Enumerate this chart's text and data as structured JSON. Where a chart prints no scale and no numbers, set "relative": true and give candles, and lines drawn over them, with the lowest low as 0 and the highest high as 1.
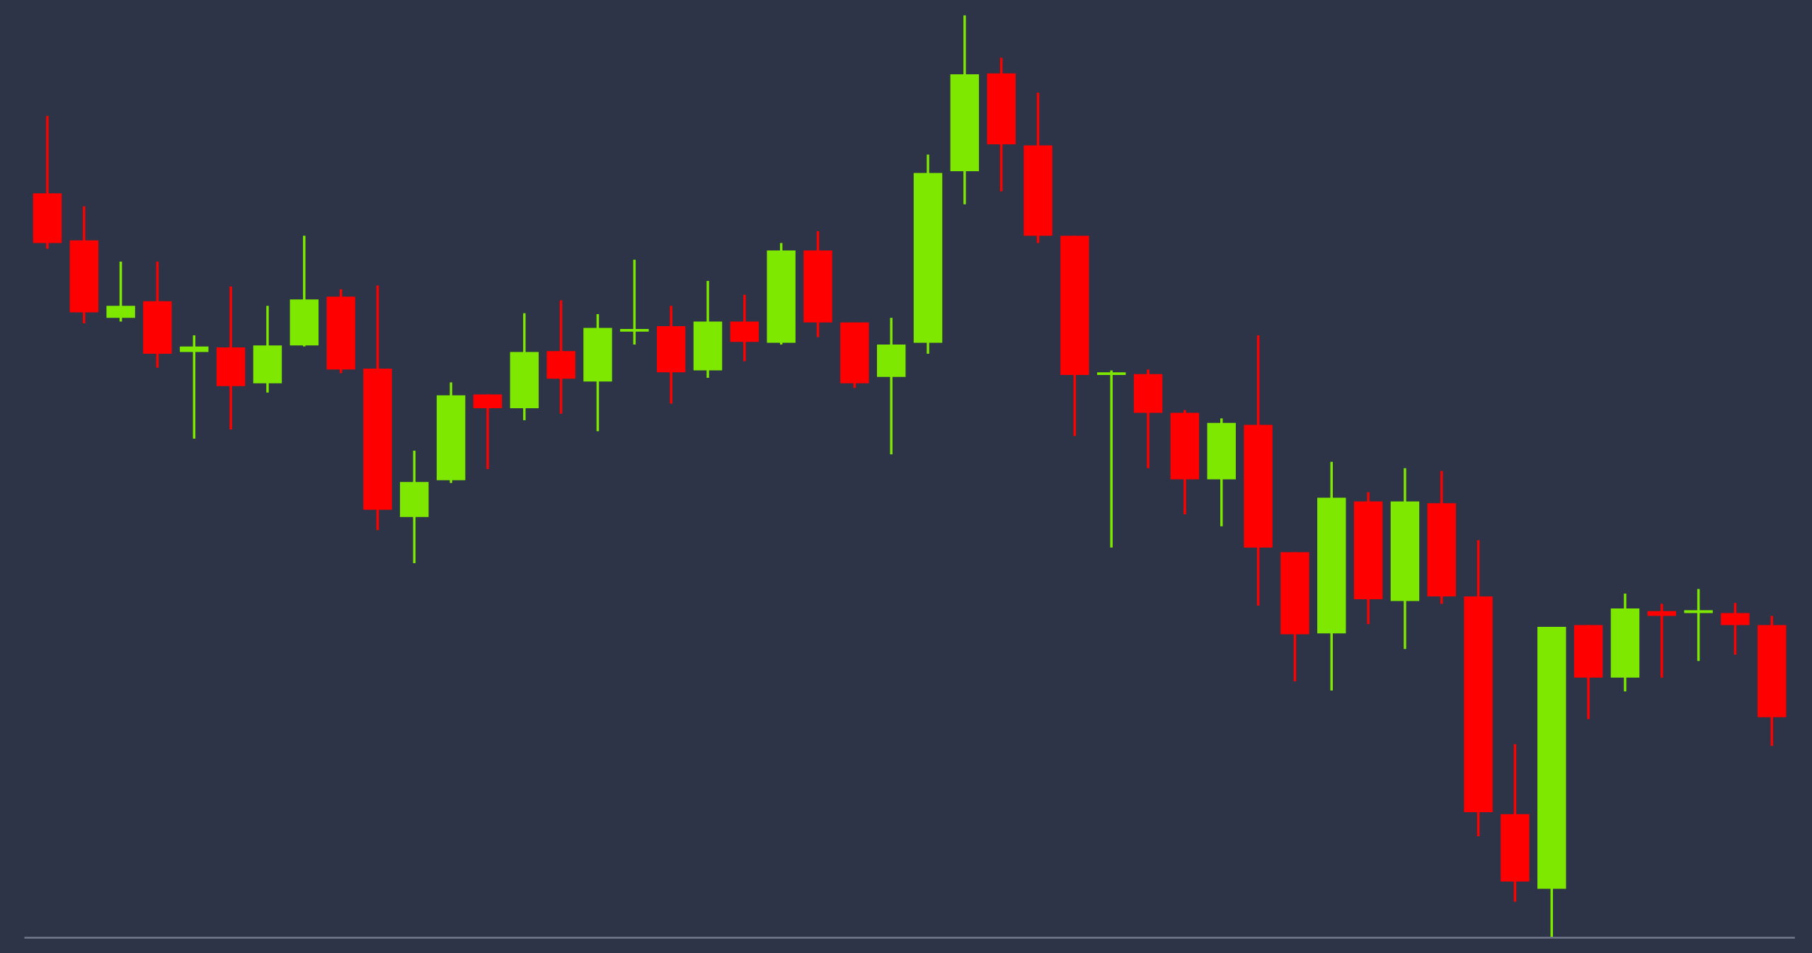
{
  "chart_data": {
    "type": "candlestick",
    "relative": true,
    "categories": [
      null,
      null,
      null,
      null,
      null,
      null,
      null,
      null,
      null,
      null,
      null,
      null,
      null,
      null,
      null,
      null,
      null,
      null,
      null,
      null,
      null,
      null,
      null,
      null,
      null,
      null,
      null,
      null,
      null,
      null,
      null,
      null,
      null,
      null,
      null,
      null,
      null,
      null,
      null,
      null,
      null,
      null,
      null,
      null,
      null,
      null,
      null,
      null
    ],
    "ohlc": [
      [
        0.807,
        0.891,
        0.747,
        0.753
      ],
      [
        0.756,
        0.793,
        0.666,
        0.678
      ],
      [
        0.672,
        0.733,
        0.668,
        0.685
      ],
      [
        0.69,
        0.733,
        0.618,
        0.633
      ],
      [
        0.635,
        0.653,
        0.541,
        0.641
      ],
      [
        0.64,
        0.706,
        0.551,
        0.598
      ],
      [
        0.601,
        0.685,
        0.591,
        0.642
      ],
      [
        0.642,
        0.761,
        0.641,
        0.692
      ],
      [
        0.695,
        0.703,
        0.612,
        0.616
      ],
      [
        0.617,
        0.707,
        0.442,
        0.464
      ],
      [
        0.456,
        0.528,
        0.406,
        0.494
      ],
      [
        0.496,
        0.602,
        0.493,
        0.588
      ],
      [
        0.589,
        0.589,
        0.508,
        0.574
      ],
      [
        0.574,
        0.677,
        0.561,
        0.635
      ],
      [
        0.636,
        0.691,
        0.568,
        0.606
      ],
      [
        0.603,
        0.676,
        0.549,
        0.661
      ],
      [
        0.657,
        0.735,
        0.643,
        0.66
      ],
      [
        0.663,
        0.685,
        0.579,
        0.613
      ],
      [
        0.615,
        0.712,
        0.607,
        0.668
      ],
      [
        0.668,
        0.697,
        0.625,
        0.646
      ],
      [
        0.645,
        0.753,
        0.643,
        0.745
      ],
      [
        0.745,
        0.766,
        0.651,
        0.667
      ],
      [
        0.667,
        0.667,
        0.596,
        0.601
      ],
      [
        0.608,
        0.672,
        0.524,
        0.643
      ],
      [
        0.645,
        0.849,
        0.633,
        0.829
      ],
      [
        0.831,
        1.0,
        0.795,
        0.936
      ],
      [
        0.937,
        0.954,
        0.809,
        0.86
      ],
      [
        0.859,
        0.916,
        0.753,
        0.761
      ],
      [
        0.761,
        0.761,
        0.544,
        0.61
      ],
      [
        0.61,
        0.615,
        0.423,
        0.612
      ],
      [
        0.611,
        0.616,
        0.509,
        0.569
      ],
      [
        0.569,
        0.572,
        0.459,
        0.497
      ],
      [
        0.497,
        0.563,
        0.446,
        0.558
      ],
      [
        0.556,
        0.653,
        0.36,
        0.423
      ],
      [
        0.418,
        0.418,
        0.278,
        0.329
      ],
      [
        0.33,
        0.516,
        0.268,
        0.477
      ],
      [
        0.473,
        0.483,
        0.34,
        0.367
      ],
      [
        0.365,
        0.509,
        0.313,
        0.473
      ],
      [
        0.471,
        0.506,
        0.362,
        0.37
      ],
      [
        0.37,
        0.431,
        0.11,
        0.136
      ],
      [
        0.134,
        0.21,
        0.039,
        0.061
      ],
      [
        0.053,
        0.337,
        0.0,
        0.337
      ],
      [
        0.339,
        0.339,
        0.237,
        0.282
      ],
      [
        0.282,
        0.373,
        0.267,
        0.357
      ],
      [
        0.354,
        0.362,
        0.282,
        0.349
      ],
      [
        0.352,
        0.378,
        0.3,
        0.354
      ],
      [
        0.352,
        0.363,
        0.307,
        0.339
      ],
      [
        0.339,
        0.349,
        0.208,
        0.239
      ]
    ],
    "colors": [
      "#ff0000",
      "#ff0000",
      "#7ee800",
      "#ff0000",
      "#7ee800",
      "#ff0000",
      "#7ee800",
      "#7ee800",
      "#ff0000",
      "#ff0000",
      "#7ee800",
      "#7ee800",
      "#ff0000",
      "#7ee800",
      "#ff0000",
      "#7ee800",
      "#7ee800",
      "#ff0000",
      "#7ee800",
      "#ff0000",
      "#7ee800",
      "#ff0000",
      "#ff0000",
      "#7ee800",
      "#7ee800",
      "#7ee800",
      "#ff0000",
      "#ff0000",
      "#ff0000",
      "#7ee800",
      "#ff0000",
      "#ff0000",
      "#7ee800",
      "#ff0000",
      "#ff0000",
      "#7ee800",
      "#ff0000",
      "#7ee800",
      "#ff0000",
      "#ff0000",
      "#ff0000",
      "#7ee800",
      "#ff0000",
      "#7ee800",
      "#ff0000",
      "#7ee800",
      "#ff0000",
      "#ff0000"
    ]
  }
}
